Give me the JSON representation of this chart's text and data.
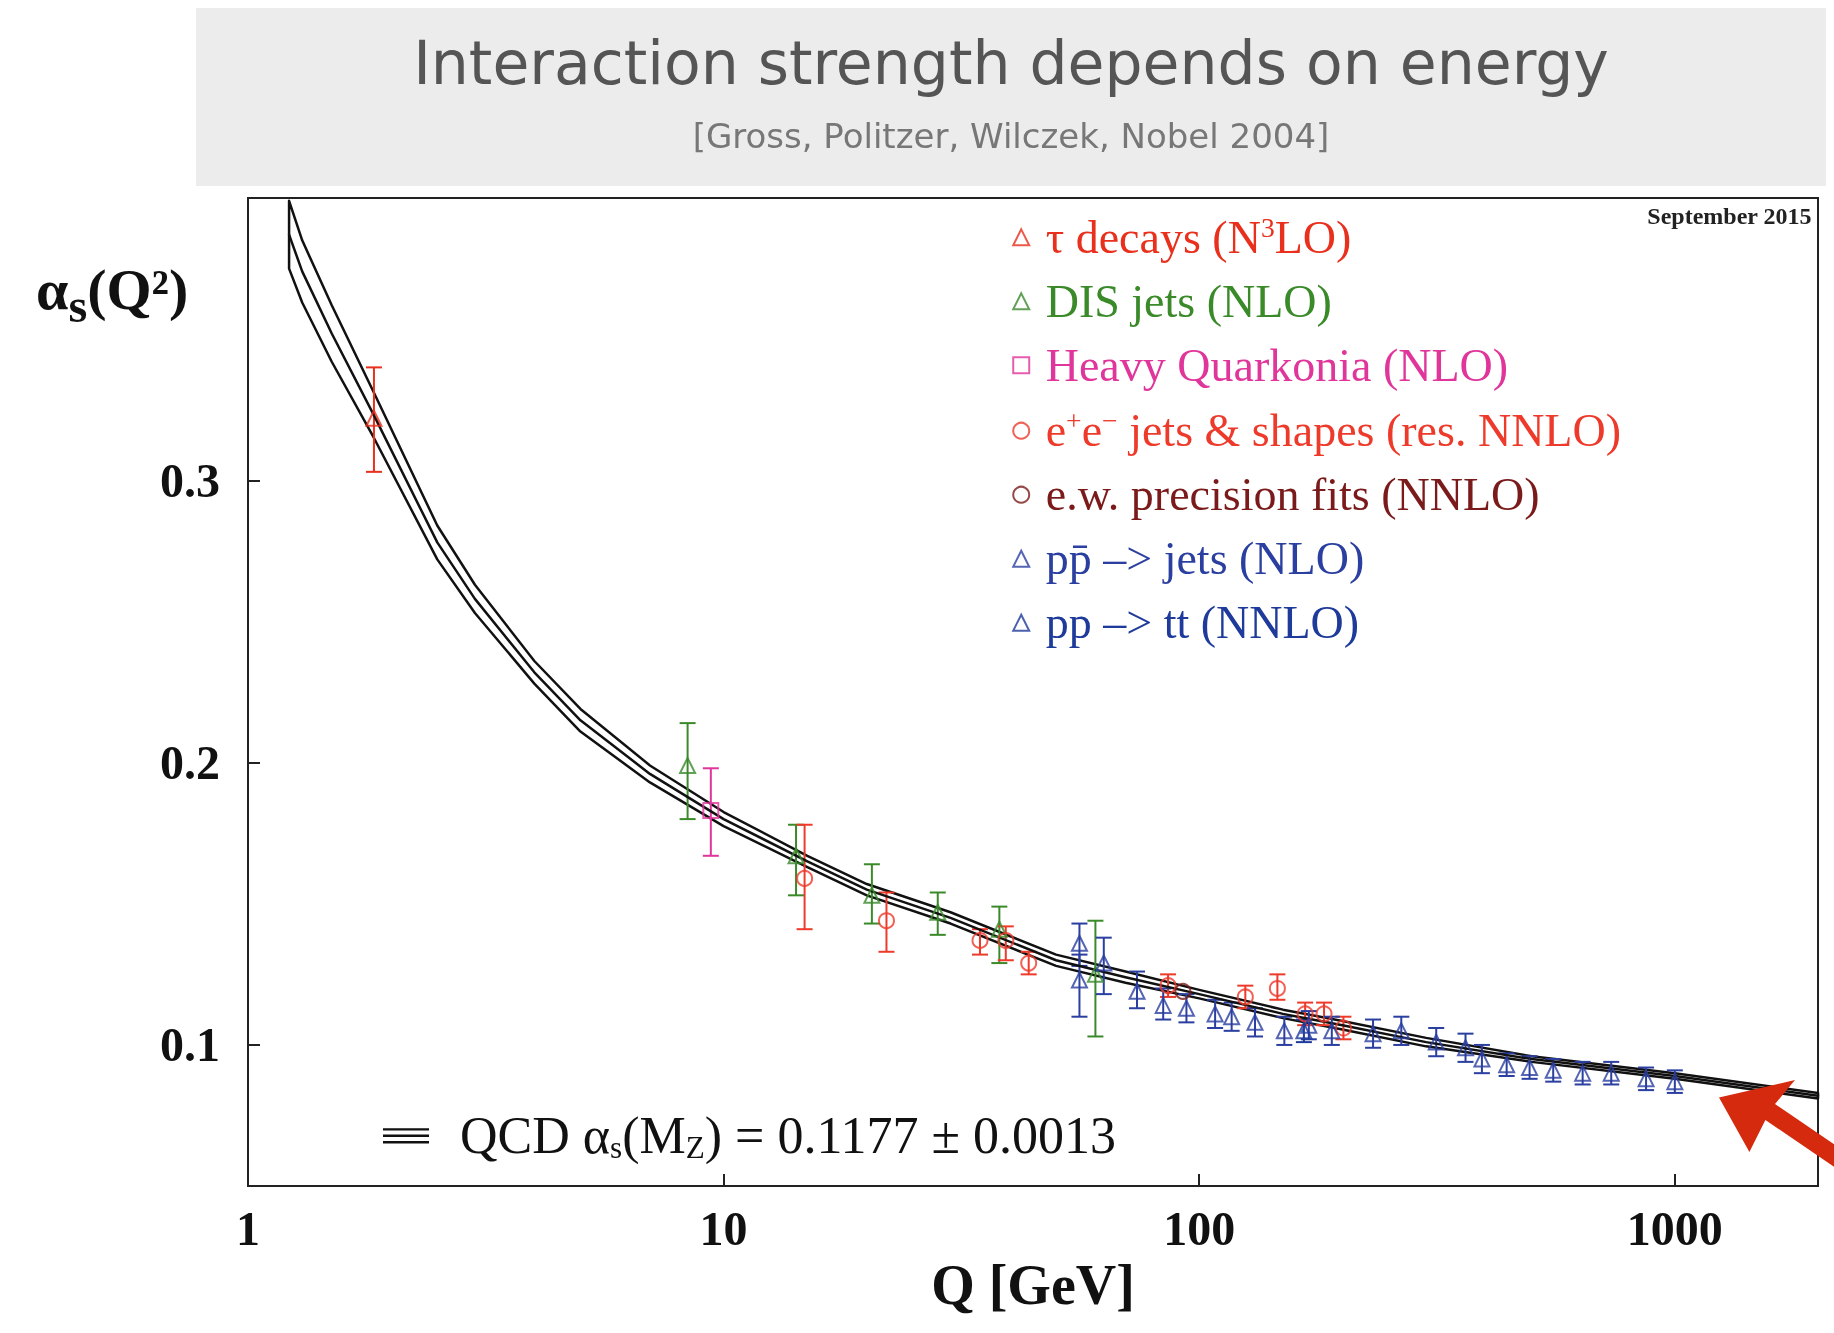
{
  "chart_data": {
    "type": "scatter",
    "title": "Interaction strength depends on energy",
    "subtitle": "[Gross, Politzer, Wilczek, Nobel 2004]",
    "annotations": [
      "September 2015"
    ],
    "xlabel": "Q [GeV]",
    "ylabel": "α$_{s}$(Q²)",
    "log": "x",
    "xlim": [
      1,
      2000
    ],
    "xticks": [
      1,
      10,
      100,
      1000
    ],
    "ylim": [
      0.05,
      0.4
    ],
    "yticks": [
      0.1,
      0.2,
      0.3
    ],
    "grid": false,
    "legend": "top right",
    "series": [
      {
        "name": "τ decays (N$^{3}$LO)",
        "color": "#e8301c",
        "marker": "triangle",
        "x": [
          1.84
        ],
        "values": [
          0.322
        ],
        "errors": [
          [
            0.303,
            0.34
          ]
        ]
      },
      {
        "name": "DIS jets (NLO)",
        "color": "#3a8a2a",
        "marker": "triangle",
        "x": [
          8.4,
          14.2,
          20.5,
          28.2,
          38,
          60.5
        ],
        "values": [
          0.199,
          0.167,
          0.153,
          0.147,
          0.141,
          0.125
        ],
        "errors": [
          [
            0.18,
            0.214
          ],
          [
            0.153,
            0.178
          ],
          [
            0.143,
            0.164
          ],
          [
            0.139,
            0.154
          ],
          [
            0.129,
            0.149
          ],
          [
            0.103,
            0.144
          ]
        ]
      },
      {
        "name": "Heavy Quarkonia (NLO)",
        "color": "#e0359a",
        "marker": "square",
        "x": [
          9.4
        ],
        "values": [
          0.183
        ],
        "errors": [
          [
            0.167,
            0.198
          ]
        ]
      },
      {
        "name": "e$^{+}$e$^{−}$ jets & shapes (res. NNLO)",
        "color": "#ee3a2a",
        "marker": "circle",
        "x": [
          14.8,
          22,
          34.6,
          39.2,
          43.8,
          86,
          125,
          146,
          167,
          183,
          201
        ],
        "values": [
          0.159,
          0.144,
          0.137,
          0.137,
          0.129,
          0.121,
          0.117,
          0.12,
          0.111,
          0.111,
          0.106
        ],
        "errors": [
          [
            0.141,
            0.178
          ],
          [
            0.133,
            0.154
          ],
          [
            0.132,
            0.141
          ],
          [
            0.13,
            0.142
          ],
          [
            0.125,
            0.133
          ],
          [
            0.117,
            0.125
          ],
          [
            0.113,
            0.121
          ],
          [
            0.116,
            0.125
          ],
          [
            0.107,
            0.115
          ],
          [
            0.107,
            0.115
          ],
          [
            0.102,
            0.11
          ]
        ]
      },
      {
        "name": "e.w. precision fits (NNLO)",
        "color": "#7a1a1a",
        "marker": "circle",
        "x": [
          92.4
        ],
        "values": [
          0.119
        ]
      },
      {
        "name": "pp̄ –> jets (NLO)",
        "color": "#2a3fa0",
        "marker": "triangle",
        "x": [
          56,
          56,
          63,
          74,
          84,
          94,
          108,
          117,
          131,
          151,
          170,
          190,
          232,
          266,
          315,
          363,
          393,
          443,
          495,
          555,
          640,
          735,
          870,
          1000
        ],
        "values": [
          0.136,
          0.123,
          0.129,
          0.119,
          0.114,
          0.113,
          0.111,
          0.11,
          0.108,
          0.105,
          0.107,
          0.105,
          0.104,
          0.105,
          0.101,
          0.099,
          0.095,
          0.093,
          0.092,
          0.091,
          0.09,
          0.09,
          0.088,
          0.087
        ],
        "errors": [
          [
            0.128,
            0.143
          ],
          [
            0.11,
            0.132
          ],
          [
            0.118,
            0.138
          ],
          [
            0.113,
            0.126
          ],
          [
            0.109,
            0.12
          ],
          [
            0.108,
            0.118
          ],
          [
            0.106,
            0.116
          ],
          [
            0.105,
            0.115
          ],
          [
            0.103,
            0.113
          ],
          [
            0.1,
            0.11
          ],
          [
            0.102,
            0.112
          ],
          [
            0.1,
            0.11
          ],
          [
            0.099,
            0.109
          ],
          [
            0.1,
            0.11
          ],
          [
            0.096,
            0.106
          ],
          [
            0.094,
            0.104
          ],
          [
            0.09,
            0.1
          ],
          [
            0.089,
            0.097
          ],
          [
            0.088,
            0.096
          ],
          [
            0.087,
            0.095
          ],
          [
            0.086,
            0.094
          ],
          [
            0.086,
            0.094
          ],
          [
            0.084,
            0.092
          ],
          [
            0.083,
            0.091
          ]
        ]
      },
      {
        "name": "pp –> tt (NNLO)",
        "color": "#1e3a9a",
        "marker": "triangle",
        "x": [
          166
        ],
        "values": [
          0.105
        ],
        "errors": [
          [
            0.101,
            0.109
          ]
        ]
      },
      {
        "name": "QCD α$_{s}$(M$_{Z}$) = 0.1177 ± 0.0013",
        "type": "line",
        "color": "#111111",
        "marker": "none",
        "x": [
          1.22,
          1.3,
          1.5,
          1.84,
          2.5,
          3,
          4,
          5,
          7,
          10,
          15,
          20,
          30,
          50,
          70,
          100,
          150,
          200,
          300,
          500,
          1000,
          2000
        ],
        "values": [
          0.387,
          0.374,
          0.352,
          0.323,
          0.278,
          0.258,
          0.232,
          0.215,
          0.196,
          0.18,
          0.165,
          0.155,
          0.145,
          0.13,
          0.124,
          0.118,
          0.111,
          0.107,
          0.101,
          0.095,
          0.089,
          0.082
        ],
        "lower": [
          0.375,
          0.363,
          0.342,
          0.315,
          0.272,
          0.253,
          0.228,
          0.211,
          0.193,
          0.1775,
          0.163,
          0.153,
          0.143,
          0.128,
          0.122,
          0.1165,
          0.1095,
          0.1055,
          0.0995,
          0.094,
          0.088,
          0.081
        ],
        "upper": [
          0.399,
          0.385,
          0.362,
          0.331,
          0.284,
          0.263,
          0.236,
          0.219,
          0.199,
          0.1825,
          0.167,
          0.157,
          0.147,
          0.132,
          0.126,
          0.1195,
          0.1125,
          0.1085,
          0.1025,
          0.096,
          0.09,
          0.083
        ]
      }
    ]
  }
}
